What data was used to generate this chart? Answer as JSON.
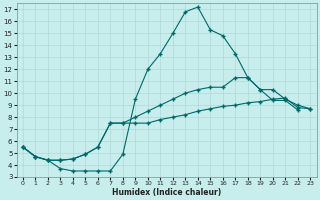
{
  "xlabel": "Humidex (Indice chaleur)",
  "xlim": [
    -0.5,
    23.5
  ],
  "ylim": [
    3,
    17.5
  ],
  "xticks": [
    0,
    1,
    2,
    3,
    4,
    5,
    6,
    7,
    8,
    9,
    10,
    11,
    12,
    13,
    14,
    15,
    16,
    17,
    18,
    19,
    20,
    21,
    22,
    23
  ],
  "yticks": [
    3,
    4,
    5,
    6,
    7,
    8,
    9,
    10,
    11,
    12,
    13,
    14,
    15,
    16,
    17
  ],
  "bg_color": "#c8eded",
  "grid_color": "#b0d8d8",
  "line_color": "#006868",
  "line1_x": [
    0,
    1,
    2,
    3,
    4,
    5,
    6,
    7,
    8,
    9,
    10,
    11,
    12,
    13,
    14,
    15,
    16,
    17,
    18,
    19,
    20,
    21,
    22
  ],
  "line1_y": [
    5.5,
    4.7,
    4.4,
    3.7,
    3.5,
    3.5,
    3.5,
    3.5,
    4.9,
    9.5,
    12.0,
    13.3,
    15.0,
    16.8,
    17.2,
    15.3,
    14.8,
    13.3,
    11.3,
    10.3,
    9.4,
    9.4,
    8.6
  ],
  "line2_x": [
    0,
    1,
    2,
    3,
    4,
    5,
    6,
    7,
    8,
    9,
    10,
    11,
    12,
    13,
    14,
    15,
    16,
    17,
    18,
    19,
    20,
    21,
    22,
    23
  ],
  "line2_y": [
    5.5,
    4.7,
    4.4,
    4.4,
    4.5,
    4.9,
    5.5,
    7.5,
    7.5,
    8.0,
    8.5,
    9.0,
    9.5,
    10.0,
    10.3,
    10.5,
    10.5,
    11.3,
    11.3,
    10.3,
    10.3,
    9.5,
    9.0,
    8.7
  ],
  "line3_x": [
    0,
    1,
    2,
    3,
    4,
    5,
    6,
    7,
    8,
    9,
    10,
    11,
    12,
    13,
    14,
    15,
    16,
    17,
    18,
    19,
    20,
    21,
    22,
    23
  ],
  "line3_y": [
    5.5,
    4.7,
    4.4,
    4.4,
    4.5,
    4.9,
    5.5,
    7.5,
    7.5,
    7.5,
    7.5,
    7.8,
    8.0,
    8.2,
    8.5,
    8.7,
    8.9,
    9.0,
    9.2,
    9.3,
    9.5,
    9.6,
    8.8,
    8.7
  ]
}
